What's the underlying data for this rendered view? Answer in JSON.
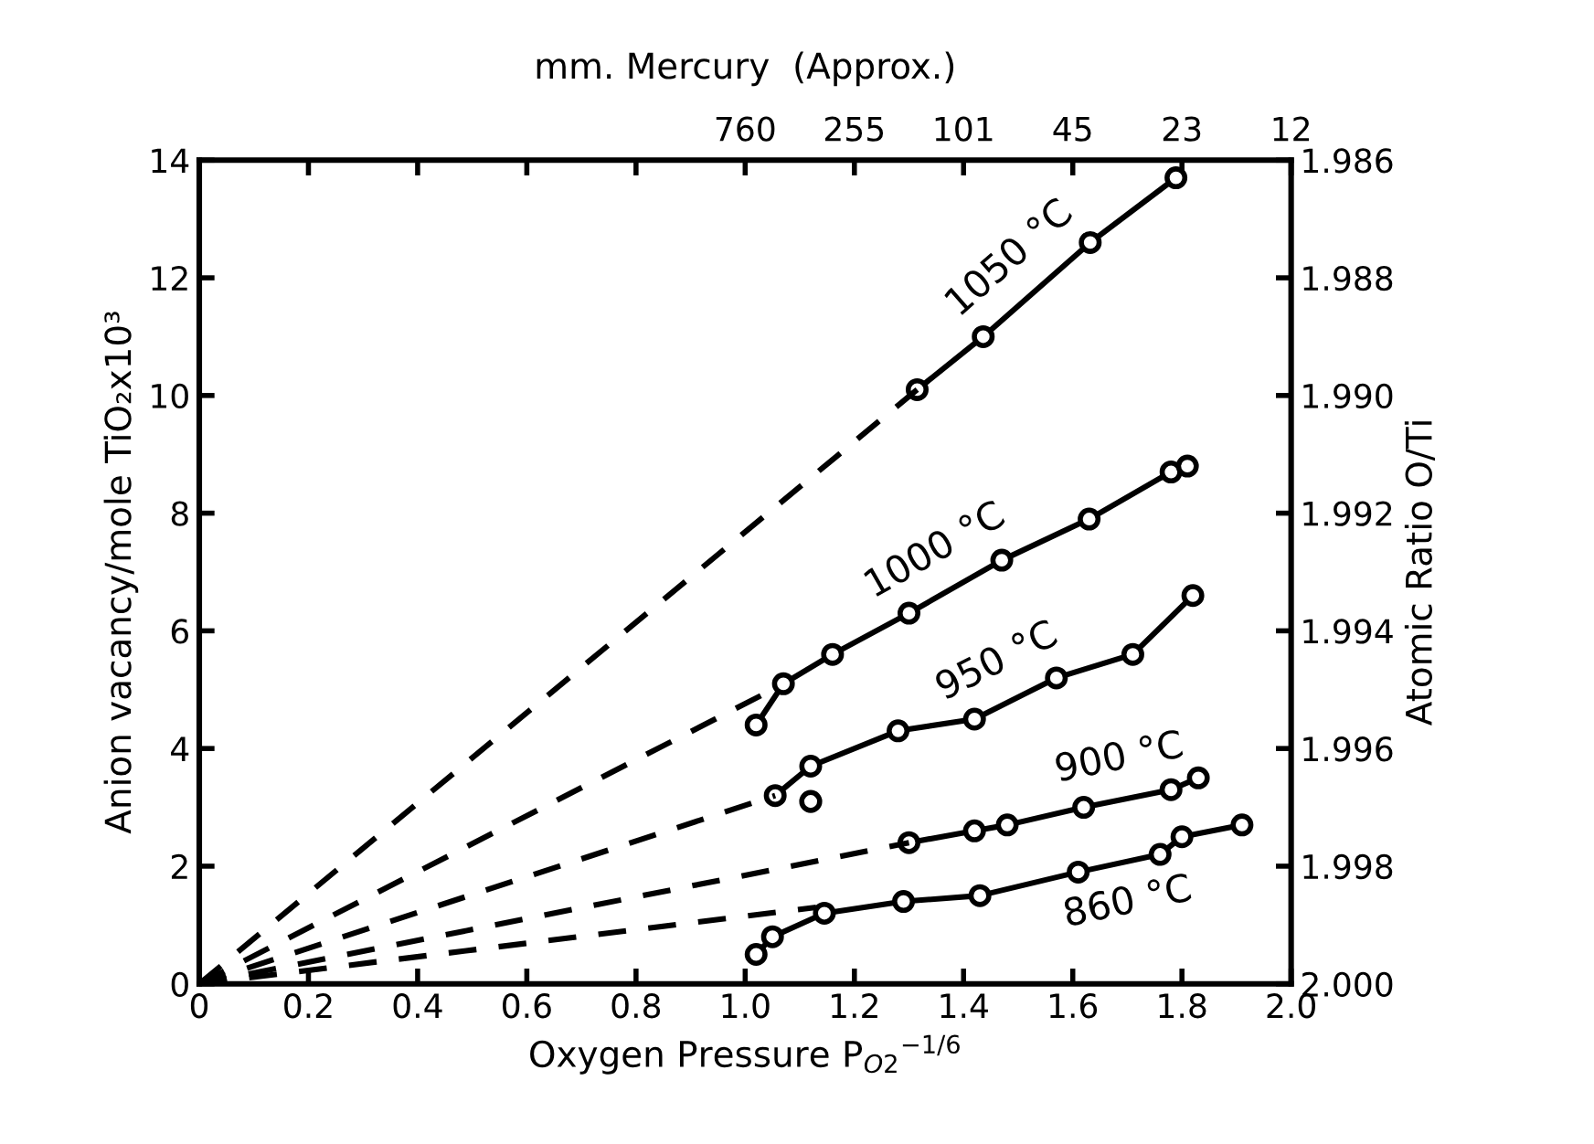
{
  "chart_data": {
    "type": "line",
    "xlabel": "Oxygen Pressure P$_{O2}$$^{−1/6}$",
    "ylabel": "Anion vacancy/mole TiO₂x10³",
    "y2label": "Atomic Ratio O/Ti",
    "xlim": [
      0,
      2.0
    ],
    "xticks": [
      0,
      0.2,
      0.4,
      0.6,
      0.8,
      {
        "value": 1.0,
        "label": "1.0"
      },
      1.2,
      1.4,
      1.6,
      1.8,
      {
        "value": 2.0,
        "label": "2.0"
      }
    ],
    "ylim": [
      0,
      14
    ],
    "yticks": [
      0,
      2,
      4,
      6,
      8,
      10,
      12,
      14
    ],
    "y2lim": [
      2.0,
      1.986
    ],
    "y2ticks": [
      {
        "value": 2.0,
        "label": "2.000"
      },
      {
        "value": 1.998,
        "label": "1.998"
      },
      {
        "value": 1.996,
        "label": "1.996"
      },
      {
        "value": 1.994,
        "label": "1.994"
      },
      {
        "value": 1.992,
        "label": "1.992"
      },
      {
        "value": 1.99,
        "label": "1.990"
      },
      {
        "value": 1.988,
        "label": "1.988"
      },
      {
        "value": 1.986,
        "label": "1.986"
      }
    ],
    "grid": false,
    "series": [
      {
        "name": "1050 °C",
        "color": "#000000",
        "marker": "circle",
        "line_style": "solid",
        "x": [
          1.315,
          1.436,
          1.632,
          1.789
        ],
        "values": [
          10.1,
          11.0,
          12.6,
          13.7
        ]
      },
      {
        "color": "#000000",
        "marker": "none",
        "line_style": "dashed",
        "x": [
          0,
          1.315
        ],
        "values": [
          0,
          10.1
        ]
      },
      {
        "name": "1000 °C",
        "color": "#000000",
        "marker": "circle",
        "line_style": "solid",
        "x": [
          1.02,
          1.07,
          1.16,
          1.3,
          1.47,
          1.63,
          1.78,
          1.81
        ],
        "values": [
          4.4,
          5.1,
          5.6,
          6.3,
          7.2,
          7.9,
          8.7,
          8.8
        ]
      },
      {
        "color": "#000000",
        "marker": "none",
        "line_style": "dashed",
        "x": [
          0,
          1.05
        ],
        "values": [
          0,
          5.0
        ]
      },
      {
        "name": "950 °C",
        "color": "#000000",
        "marker": "circle",
        "line_style": "solid",
        "x": [
          1.055,
          1.12,
          1.28,
          1.42,
          1.57,
          1.71,
          1.82
        ],
        "values": [
          3.2,
          3.7,
          4.3,
          4.5,
          5.2,
          5.6,
          6.6
        ]
      },
      {
        "color": "#000000",
        "type": "scatter",
        "marker": "circle",
        "x": [
          1.12
        ],
        "values": [
          3.1
        ]
      },
      {
        "color": "#000000",
        "marker": "none",
        "line_style": "dashed",
        "x": [
          0,
          1.055
        ],
        "values": [
          0,
          3.2
        ]
      },
      {
        "name": "900 °C",
        "color": "#000000",
        "marker": "circle",
        "line_style": "solid",
        "x": [
          1.3,
          1.42,
          1.48,
          1.62,
          1.78,
          1.83
        ],
        "values": [
          2.4,
          2.6,
          2.7,
          3.0,
          3.3,
          3.5
        ]
      },
      {
        "color": "#000000",
        "marker": "none",
        "line_style": "dashed",
        "x": [
          0,
          1.3
        ],
        "values": [
          0,
          2.4
        ]
      },
      {
        "name": "860 °C",
        "color": "#000000",
        "marker": "circle",
        "line_style": "solid",
        "x": [
          1.02,
          1.05,
          1.145,
          1.29,
          1.43,
          1.61,
          1.76,
          1.8,
          1.91
        ],
        "values": [
          0.5,
          0.8,
          1.2,
          1.4,
          1.5,
          1.9,
          2.2,
          2.5,
          2.7
        ]
      },
      {
        "color": "#000000",
        "marker": "none",
        "line_style": "dashed",
        "x": [
          0,
          1.13
        ],
        "values": [
          0,
          1.3
        ]
      }
    ],
    "annotations": [
      "mm. Mercury  (Approx.)",
      "760",
      "255",
      "101",
      "45",
      "23",
      "12"
    ]
  }
}
